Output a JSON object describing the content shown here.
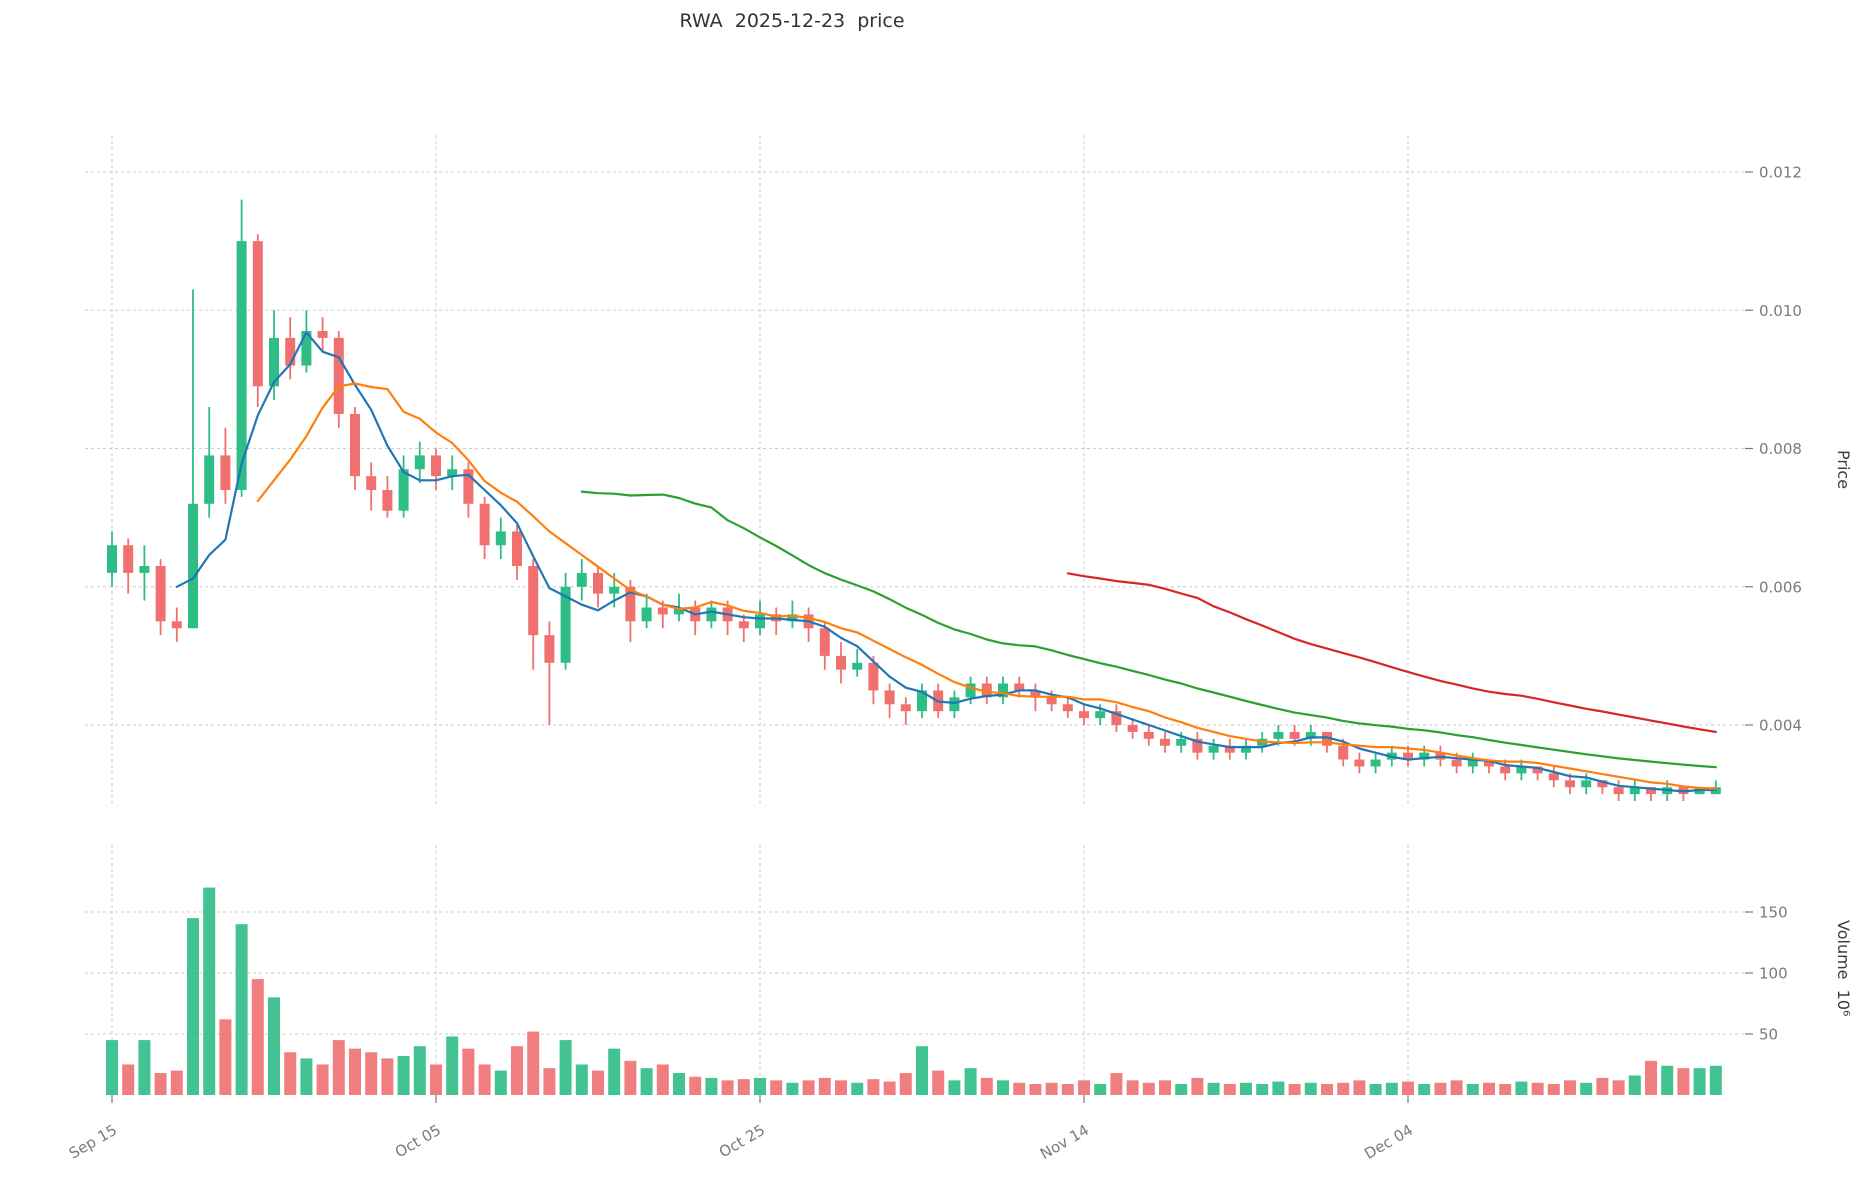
{
  "header": {
    "title": "RWA  2025-12-23  price"
  },
  "axes": {
    "price_title": "Price",
    "volume_title": "Volume  10⁶"
  },
  "chart_data": {
    "type": "candlestick",
    "title": "RWA  2025-12-23  price",
    "symbol": "RWA",
    "as_of_date": "2025-12-23",
    "n_points": 100,
    "grid": true,
    "legend_position": "none",
    "x_tick_positions": [
      0,
      20,
      40,
      60,
      80
    ],
    "x_tick_labels": [
      "Sep 15",
      "Oct 05",
      "Oct 25",
      "Nov 14",
      "Dec 04"
    ],
    "price_ticks": [
      0.004,
      0.006,
      0.008,
      0.01,
      0.012
    ],
    "price_tick_labels": [
      "0.004",
      "0.006",
      "0.008",
      "0.010",
      "0.012"
    ],
    "price_range": [
      0.0028,
      0.0122
    ],
    "volume_ticks": [
      50,
      100,
      150
    ],
    "volume_tick_labels": [
      "50",
      "100",
      "150"
    ],
    "volume_range": [
      0,
      185
    ],
    "volume_unit": "10⁶",
    "up_color": "#2ebd85",
    "down_color": "#f07070",
    "moving_averages": [
      {
        "window": 5,
        "color": "#1f77b4"
      },
      {
        "window": 10,
        "color": "#ff7f0e"
      },
      {
        "window": 30,
        "color": "#2ca02c"
      },
      {
        "window": 60,
        "color": "#d62728"
      }
    ],
    "open": [
      0.0062,
      0.0066,
      0.0062,
      0.0063,
      0.0055,
      0.0054,
      0.0072,
      0.0079,
      0.0074,
      0.011,
      0.0089,
      0.0096,
      0.0092,
      0.0097,
      0.0096,
      0.0085,
      0.0076,
      0.0074,
      0.0071,
      0.0077,
      0.0079,
      0.0076,
      0.0077,
      0.0072,
      0.0066,
      0.0068,
      0.0063,
      0.0053,
      0.0049,
      0.006,
      0.0062,
      0.0059,
      0.006,
      0.0055,
      0.0057,
      0.0056,
      0.0057,
      0.0055,
      0.0057,
      0.0055,
      0.0054,
      0.0056,
      0.0055,
      0.0056,
      0.0054,
      0.005,
      0.0048,
      0.0049,
      0.0045,
      0.0043,
      0.0042,
      0.0045,
      0.0042,
      0.0044,
      0.0046,
      0.0044,
      0.0046,
      0.0045,
      0.0044,
      0.0043,
      0.0042,
      0.0041,
      0.0042,
      0.004,
      0.0039,
      0.0038,
      0.0037,
      0.0038,
      0.0036,
      0.0037,
      0.0036,
      0.0037,
      0.0038,
      0.0039,
      0.0038,
      0.0039,
      0.0037,
      0.0035,
      0.0034,
      0.0035,
      0.0036,
      0.0035,
      0.0036,
      0.0035,
      0.0034,
      0.0035,
      0.0034,
      0.0033,
      0.0034,
      0.0033,
      0.0032,
      0.0031,
      0.0032,
      0.0031,
      0.003,
      0.0031,
      0.003,
      0.0031,
      0.003,
      0.003
    ],
    "high": [
      0.0068,
      0.0067,
      0.0066,
      0.0064,
      0.0057,
      0.0103,
      0.0086,
      0.0083,
      0.0116,
      0.0111,
      0.01,
      0.0099,
      0.01,
      0.0099,
      0.0097,
      0.0086,
      0.0078,
      0.0076,
      0.0079,
      0.0081,
      0.008,
      0.0079,
      0.0078,
      0.0073,
      0.007,
      0.0069,
      0.0064,
      0.0055,
      0.0062,
      0.0064,
      0.0063,
      0.0062,
      0.0061,
      0.0059,
      0.0058,
      0.0059,
      0.0058,
      0.0058,
      0.0058,
      0.0056,
      0.0058,
      0.0057,
      0.0058,
      0.0057,
      0.0055,
      0.0052,
      0.0051,
      0.005,
      0.0046,
      0.0044,
      0.0046,
      0.0046,
      0.0045,
      0.0047,
      0.0047,
      0.0047,
      0.0047,
      0.0046,
      0.0045,
      0.0044,
      0.0043,
      0.0043,
      0.0043,
      0.0041,
      0.004,
      0.0039,
      0.0039,
      0.0039,
      0.0038,
      0.0038,
      0.0038,
      0.0039,
      0.004,
      0.004,
      0.004,
      0.0039,
      0.0038,
      0.0036,
      0.0036,
      0.0037,
      0.0037,
      0.0037,
      0.0037,
      0.0036,
      0.0036,
      0.0035,
      0.0035,
      0.0035,
      0.0034,
      0.0034,
      0.0033,
      0.0033,
      0.0032,
      0.0032,
      0.0032,
      0.0031,
      0.0032,
      0.0031,
      0.0031,
      0.0032
    ],
    "low": [
      0.006,
      0.0059,
      0.0058,
      0.0053,
      0.0052,
      0.0054,
      0.007,
      0.0072,
      0.0073,
      0.0086,
      0.0087,
      0.009,
      0.0091,
      0.0094,
      0.0083,
      0.0074,
      0.0071,
      0.007,
      0.007,
      0.0075,
      0.0074,
      0.0074,
      0.007,
      0.0064,
      0.0064,
      0.0061,
      0.0048,
      0.004,
      0.0048,
      0.0058,
      0.0057,
      0.0057,
      0.0052,
      0.0054,
      0.0054,
      0.0055,
      0.0053,
      0.0054,
      0.0053,
      0.0052,
      0.0053,
      0.0053,
      0.0054,
      0.0052,
      0.0048,
      0.0046,
      0.0047,
      0.0043,
      0.0041,
      0.004,
      0.0041,
      0.0041,
      0.0041,
      0.0043,
      0.0043,
      0.0043,
      0.0044,
      0.0042,
      0.0042,
      0.0041,
      0.004,
      0.004,
      0.0039,
      0.0038,
      0.0037,
      0.0036,
      0.0036,
      0.0035,
      0.0035,
      0.0035,
      0.0035,
      0.0036,
      0.0037,
      0.0037,
      0.0037,
      0.0036,
      0.0034,
      0.0033,
      0.0033,
      0.0034,
      0.0034,
      0.0034,
      0.0034,
      0.0033,
      0.0033,
      0.0033,
      0.0032,
      0.0032,
      0.0032,
      0.0031,
      0.003,
      0.003,
      0.003,
      0.0029,
      0.0029,
      0.0029,
      0.0029,
      0.0029,
      0.003,
      0.003
    ],
    "close": [
      0.0066,
      0.0062,
      0.0063,
      0.0055,
      0.0054,
      0.0072,
      0.0079,
      0.0074,
      0.011,
      0.0089,
      0.0096,
      0.0092,
      0.0097,
      0.0096,
      0.0085,
      0.0076,
      0.0074,
      0.0071,
      0.0077,
      0.0079,
      0.0076,
      0.0077,
      0.0072,
      0.0066,
      0.0068,
      0.0063,
      0.0053,
      0.0049,
      0.006,
      0.0062,
      0.0059,
      0.006,
      0.0055,
      0.0057,
      0.0056,
      0.0057,
      0.0055,
      0.0057,
      0.0055,
      0.0054,
      0.0056,
      0.0055,
      0.0056,
      0.0054,
      0.005,
      0.0048,
      0.0049,
      0.0045,
      0.0043,
      0.0042,
      0.0045,
      0.0042,
      0.0044,
      0.0046,
      0.0044,
      0.0046,
      0.0045,
      0.0044,
      0.0043,
      0.0042,
      0.0041,
      0.0042,
      0.004,
      0.0039,
      0.0038,
      0.0037,
      0.0038,
      0.0036,
      0.0037,
      0.0036,
      0.0037,
      0.0038,
      0.0039,
      0.0038,
      0.0039,
      0.0037,
      0.0035,
      0.0034,
      0.0035,
      0.0036,
      0.0035,
      0.0036,
      0.0035,
      0.0034,
      0.0035,
      0.0034,
      0.0033,
      0.0034,
      0.0033,
      0.0032,
      0.0031,
      0.0032,
      0.0031,
      0.003,
      0.0031,
      0.003,
      0.0031,
      0.003,
      0.0031,
      0.0031
    ],
    "volume": [
      45,
      25,
      45,
      18,
      20,
      145,
      170,
      62,
      140,
      95,
      80,
      35,
      30,
      25,
      45,
      38,
      35,
      30,
      32,
      40,
      25,
      48,
      38,
      25,
      20,
      40,
      52,
      22,
      45,
      25,
      20,
      38,
      28,
      22,
      25,
      18,
      15,
      14,
      12,
      13,
      14,
      12,
      10,
      12,
      14,
      12,
      10,
      13,
      11,
      18,
      40,
      20,
      12,
      22,
      14,
      12,
      10,
      9,
      10,
      9,
      12,
      9,
      18,
      12,
      10,
      12,
      9,
      14,
      10,
      9,
      10,
      9,
      11,
      9,
      10,
      9,
      10,
      12,
      9,
      10,
      11,
      9,
      10,
      12,
      9,
      10,
      9,
      11,
      10,
      9,
      12,
      10,
      14,
      12,
      16,
      28,
      24,
      22,
      22,
      24
    ]
  }
}
